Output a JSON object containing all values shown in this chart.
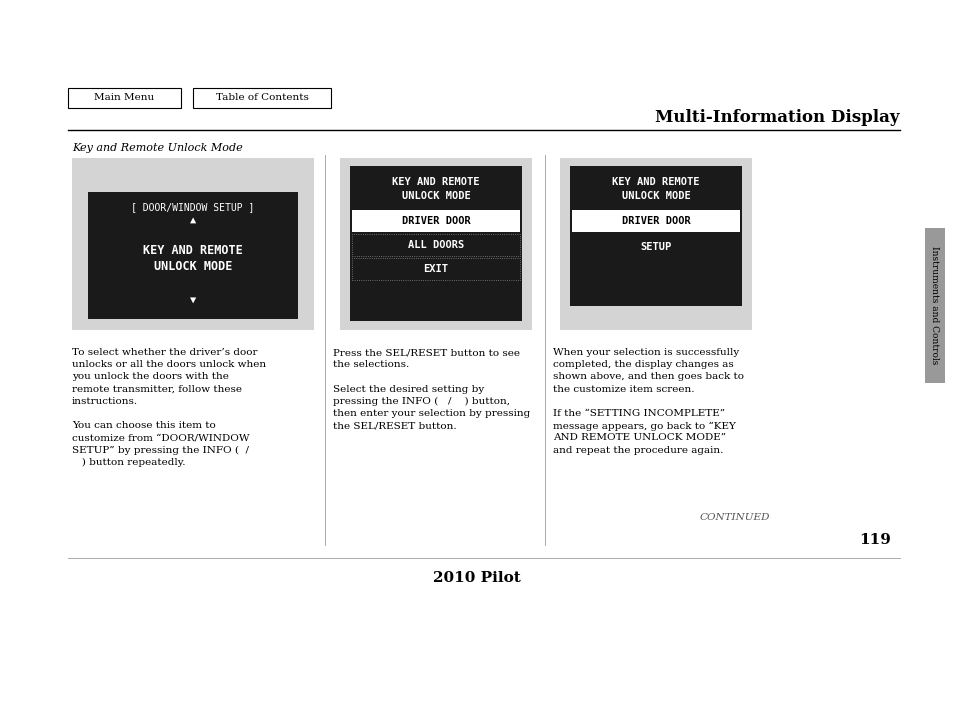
{
  "page_bg": "#ffffff",
  "title": "Multi-Information Display",
  "footer_text": "2010 Pilot",
  "page_number": "119",
  "continued_text": "CONTINUED",
  "section_label": "Instruments and Controls",
  "nav_buttons": [
    "Main Menu",
    "Table of Contents"
  ],
  "italic_heading": "Key and Remote Unlock Mode",
  "screen1_bg": "#1a1a1a",
  "screen2_bg": "#1a1a1a",
  "screen3_bg": "#1a1a1a",
  "screen_outer_bg": "#d4d4d4",
  "col1_text": [
    "To select whether the driver’s door",
    "unlocks or all the doors unlock when",
    "you unlock the doors with the",
    "remote transmitter, follow these",
    "instructions.",
    "",
    "You can choose this item to",
    "customize from “DOOR/WINDOW",
    "SETUP” by pressing the INFO (  /",
    "   ) button repeatedly."
  ],
  "col2_text": [
    "Press the SEL/RESET button to see",
    "the selections.",
    "",
    "Select the desired setting by",
    "pressing the INFO (   /    ) button,",
    "then enter your selection by pressing",
    "the SEL/RESET button."
  ],
  "col3_text": [
    "When your selection is successfully",
    "completed, the display changes as",
    "shown above, and then goes back to",
    "the customize item screen.",
    "",
    "If the “SETTING INCOMPLETE”",
    "message appears, go back to “KEY",
    "AND REMOTE UNLOCK MODE”",
    "and repeat the procedure again."
  ],
  "tab_color": "#999999",
  "col_divider_color": "#aaaaaa",
  "title_divider_color": "#000000",
  "footer_divider_color": "#aaaaaa"
}
